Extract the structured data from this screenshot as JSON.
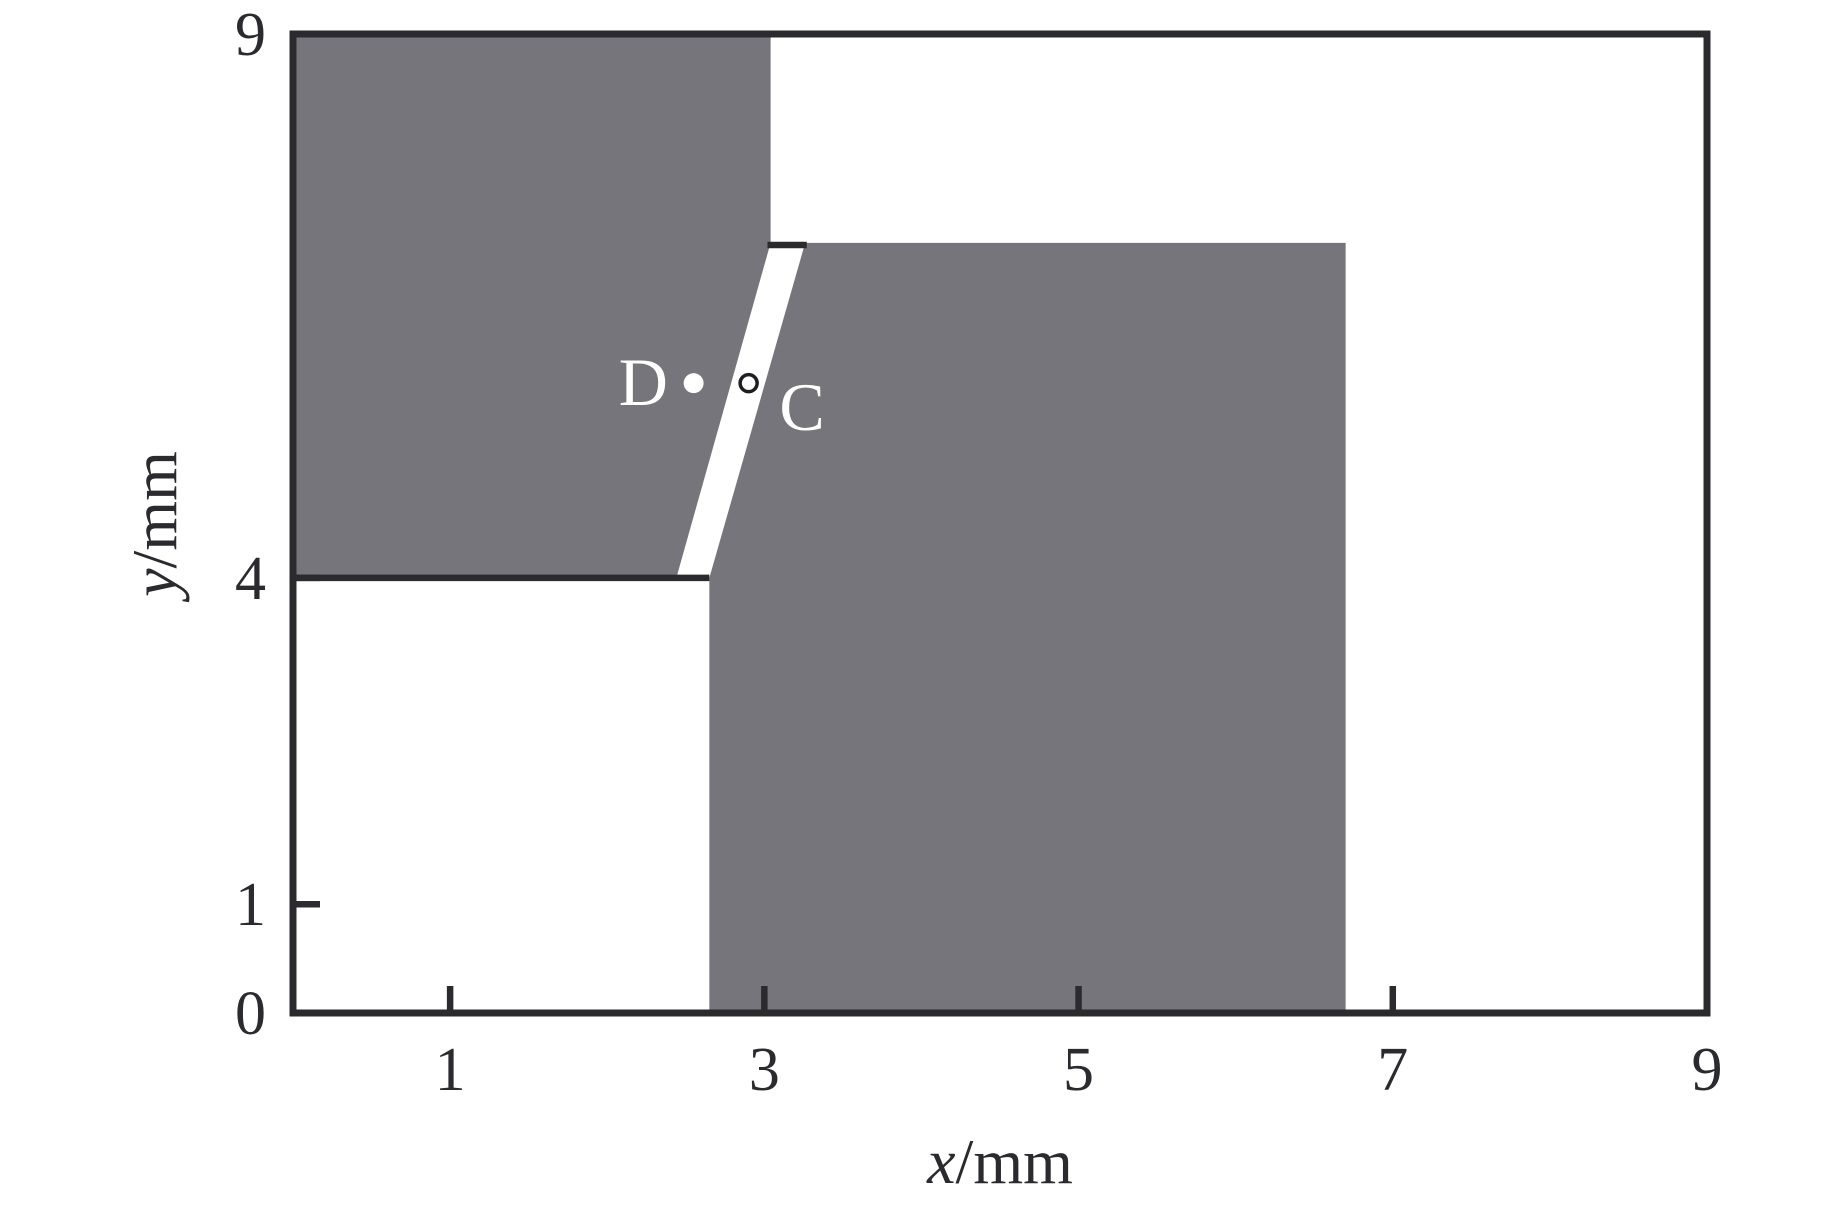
{
  "figure": {
    "description": "Two gray shaded grain regions separated by a narrow white slanted gap, plotted on x/mm vs y/mm axes, with marked points C and D",
    "background": "#FFFFFF"
  },
  "axes": {
    "x_label_symbol": "x",
    "x_label_unit": "/mm",
    "y_label_symbol": "y",
    "y_label_unit": "/mm"
  },
  "colors": {
    "region_fill": "#76757B",
    "axis_stroke": "#2B2A2E",
    "background": "#FFFFFF",
    "point_fill": "#FFFFFF",
    "open_circle_stroke": "#1E1D21",
    "point_label": "#FFFFFF"
  },
  "chart_data": {
    "type": "area",
    "title": "",
    "xlabel": "x/mm",
    "ylabel": "y/mm",
    "xlim": [
      0,
      9
    ],
    "ylim": [
      0,
      9
    ],
    "grid": false,
    "legend": null,
    "x_tick_marks": [
      1,
      3,
      5,
      7
    ],
    "x_tick_labels": [
      "1",
      "3",
      "5",
      "7",
      "9"
    ],
    "x_tick_label_values": [
      1,
      3,
      5,
      7,
      9
    ],
    "y_tick_marks": [
      1,
      4
    ],
    "y_tick_labels": [
      "0",
      "1",
      "4",
      "9"
    ],
    "y_tick_label_values": [
      0,
      1,
      4,
      9
    ],
    "regions": [
      {
        "name": "upper-left-grain",
        "vertices": [
          [
            0,
            4
          ],
          [
            0,
            9
          ],
          [
            3.04,
            9
          ],
          [
            3.04,
            7.08
          ],
          [
            2.44,
            4
          ]
        ]
      },
      {
        "name": "lower-right-grain",
        "vertices": [
          [
            2.65,
            0
          ],
          [
            2.65,
            4
          ],
          [
            3.26,
            7.08
          ],
          [
            6.7,
            7.08
          ],
          [
            6.7,
            0
          ]
        ]
      }
    ],
    "boundary_lines": [
      {
        "name": "left-grain-bottom-edge",
        "from": [
          0,
          4
        ],
        "to": [
          2.65,
          4
        ]
      },
      {
        "name": "gap-top-cap",
        "from": [
          3.02,
          7.06
        ],
        "to": [
          3.27,
          7.06
        ]
      }
    ],
    "gap": {
      "description": "white slanted gap between the two grains",
      "left_edge": [
        [
          2.44,
          4
        ],
        [
          3.04,
          7.08
        ]
      ],
      "right_edge": [
        [
          2.65,
          4
        ],
        [
          3.26,
          7.08
        ]
      ]
    },
    "points": [
      {
        "label": "D",
        "x": 2.55,
        "y": 5.79,
        "marker": "filled-dot",
        "label_pos": [
          2.23,
          5.8
        ]
      },
      {
        "label": "C",
        "x": 2.9,
        "y": 5.79,
        "marker": "open-circle",
        "label_pos": [
          3.24,
          5.57
        ]
      }
    ]
  }
}
